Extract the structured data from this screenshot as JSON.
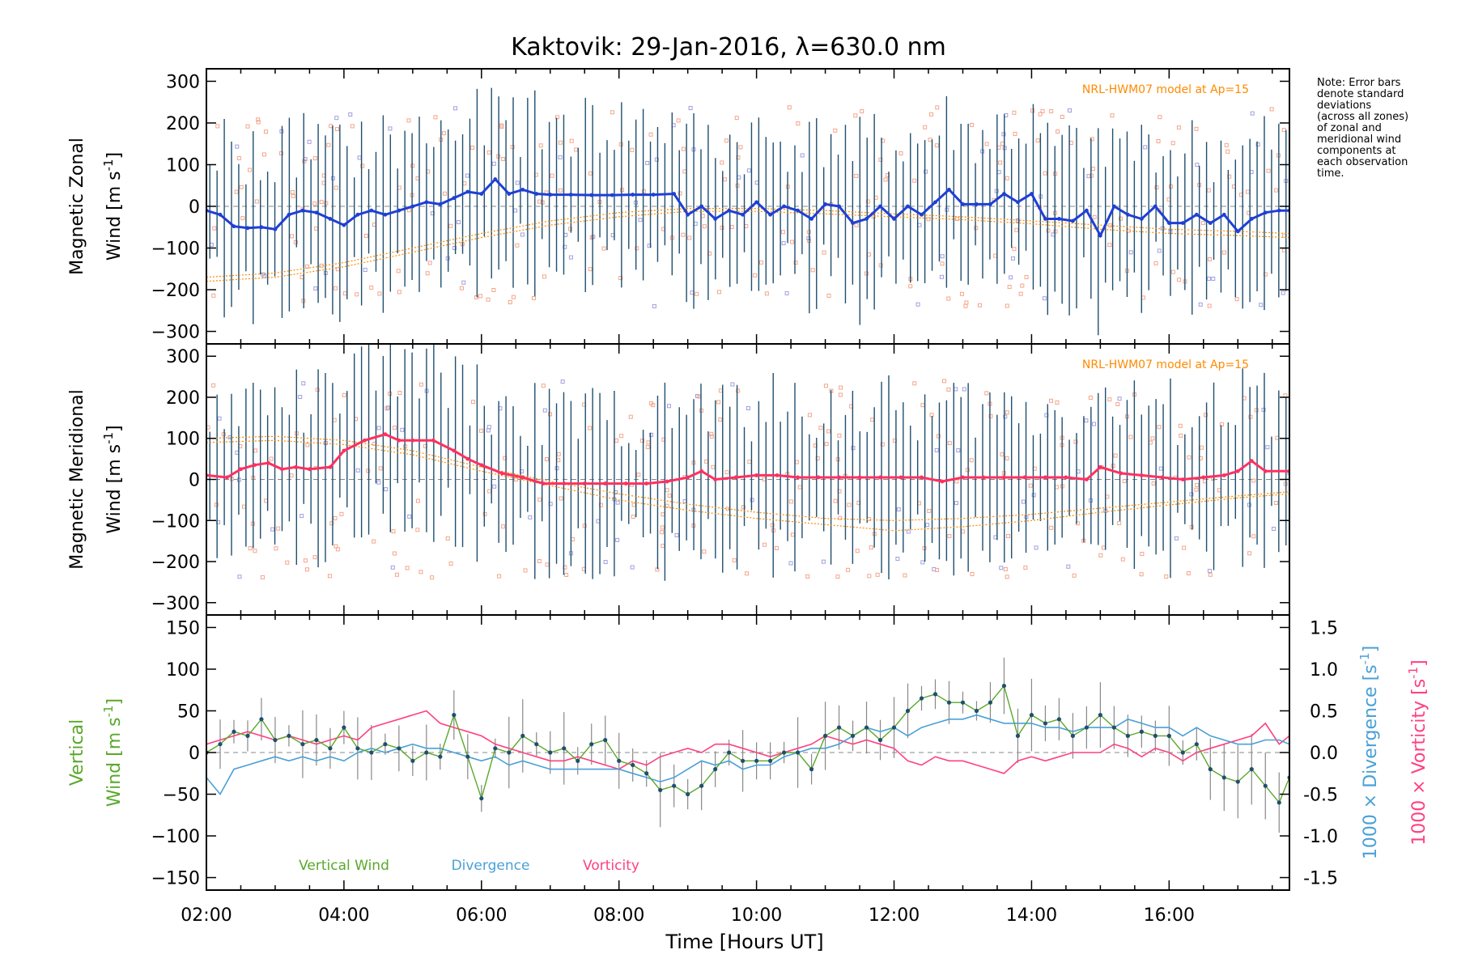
{
  "title": "Kaktovik: 29-Jan-2016, λ=630.0 nm",
  "xlabel": "Time [Hours UT]",
  "note_lines": [
    "Note: Error bars",
    "denote standard",
    "deviations",
    "(across all zones)",
    "of zonal and",
    "meridional wind",
    "components at",
    "each observation",
    "time."
  ],
  "colors": {
    "zonal": "#1f3fd6",
    "meridional": "#ff3060",
    "vertical": "#5aa82a",
    "divergence": "#4aa0d8",
    "vorticity": "#ff4080",
    "model": "#ff8a00",
    "errorbar": "#1f4f6f",
    "zone_a": "#f4a58a",
    "zone_b": "#9f9fe0"
  },
  "chart_data": [
    {
      "type": "line",
      "panel": "zonal",
      "ylabel_line1": "Magnetic Zonal",
      "ylabel_line2": "Wind [m s",
      "ylabel_sup": "-1",
      "ylabel_close": "]",
      "ylim": [
        -330,
        330
      ],
      "yticks": [
        300,
        200,
        100,
        0,
        -100,
        -200,
        -300
      ],
      "xlim": [
        2.0,
        17.75
      ],
      "model_label": "NRL-HWM07 model at Ap=15",
      "series": [
        {
          "x": [
            2.0,
            2.2,
            2.4,
            2.6,
            2.8,
            3.0,
            3.2,
            3.4,
            3.6,
            3.8,
            4.0,
            4.2,
            4.4,
            4.6,
            4.8,
            5.0,
            5.2,
            5.4,
            5.6,
            5.8,
            6.0,
            6.2,
            6.4,
            6.6,
            6.8,
            7.0,
            7.3,
            7.6,
            7.9,
            8.2,
            8.5,
            8.8,
            9.0,
            9.2,
            9.4,
            9.6,
            9.8,
            10.0,
            10.2,
            10.4,
            10.6,
            10.8,
            11.0,
            11.2,
            11.4,
            11.6,
            11.8,
            12.0,
            12.2,
            12.4,
            12.6,
            12.8,
            13.0,
            13.2,
            13.4,
            13.6,
            13.8,
            14.0,
            14.2,
            14.4,
            14.6,
            14.8,
            15.0,
            15.2,
            15.4,
            15.6,
            15.8,
            16.0,
            16.2,
            16.4,
            16.6,
            16.8,
            17.0,
            17.2,
            17.4,
            17.6,
            17.75
          ],
          "y": [
            -10,
            -20,
            -48,
            -52,
            -50,
            -55,
            -20,
            -10,
            -15,
            -30,
            -45,
            -20,
            -10,
            -20,
            -10,
            0,
            10,
            5,
            20,
            35,
            30,
            65,
            30,
            40,
            30,
            28,
            28,
            27,
            27,
            28,
            28,
            30,
            -20,
            0,
            -30,
            -10,
            -20,
            10,
            -20,
            0,
            -10,
            -30,
            5,
            0,
            -40,
            -30,
            0,
            -30,
            0,
            -20,
            10,
            40,
            5,
            5,
            5,
            30,
            10,
            30,
            -30,
            -30,
            -35,
            -10,
            -70,
            0,
            -20,
            -30,
            0,
            -40,
            -40,
            -20,
            -40,
            -20,
            -60,
            -30,
            -15,
            -10,
            -10
          ]
        }
      ],
      "model": [
        {
          "x": [
            2.0,
            3.0,
            4.0,
            5.0,
            6.0,
            7.0,
            8.0,
            9.0,
            10.0,
            11.0,
            12.0,
            13.0,
            14.0,
            15.0,
            16.0,
            17.0,
            17.75
          ],
          "y": [
            -170,
            -160,
            -135,
            -100,
            -65,
            -35,
            -15,
            -5,
            -5,
            -10,
            -18,
            -25,
            -35,
            -45,
            -55,
            -60,
            -65
          ]
        },
        {
          "x": [
            2.0,
            3.0,
            4.0,
            5.0,
            6.0,
            7.0,
            8.0,
            9.0,
            10.0,
            11.0,
            12.0,
            13.0,
            14.0,
            15.0,
            16.0,
            17.0,
            17.75
          ],
          "y": [
            -180,
            -170,
            -145,
            -110,
            -75,
            -45,
            -25,
            -12,
            -12,
            -18,
            -25,
            -32,
            -42,
            -55,
            -65,
            -70,
            -75
          ]
        }
      ]
    },
    {
      "type": "line",
      "panel": "meridional",
      "ylabel_line1": "Magnetic Meridional",
      "ylabel_line2": "Wind [m s",
      "ylabel_sup": "-1",
      "ylabel_close": "]",
      "ylim": [
        -330,
        330
      ],
      "yticks": [
        300,
        200,
        100,
        0,
        -100,
        -200,
        -300
      ],
      "xlim": [
        2.0,
        17.75
      ],
      "model_label": "NRL-HWM07 model at Ap=15",
      "series": [
        {
          "x": [
            2.0,
            2.3,
            2.5,
            2.7,
            2.9,
            3.1,
            3.3,
            3.5,
            3.8,
            4.0,
            4.3,
            4.6,
            4.8,
            5.0,
            5.3,
            5.6,
            5.8,
            6.0,
            6.3,
            6.6,
            6.9,
            7.2,
            7.5,
            7.8,
            8.1,
            8.4,
            8.7,
            9.0,
            9.2,
            9.4,
            9.7,
            10.0,
            10.3,
            10.6,
            10.9,
            11.2,
            11.5,
            11.8,
            12.1,
            12.4,
            12.7,
            13.0,
            13.3,
            13.6,
            13.9,
            14.2,
            14.5,
            14.8,
            15.0,
            15.3,
            15.6,
            15.9,
            16.2,
            16.5,
            16.8,
            17.0,
            17.2,
            17.4,
            17.75
          ],
          "y": [
            10,
            5,
            25,
            35,
            40,
            25,
            30,
            25,
            30,
            70,
            95,
            110,
            95,
            95,
            95,
            70,
            50,
            35,
            15,
            5,
            -10,
            -10,
            -10,
            -10,
            -10,
            -10,
            -5,
            5,
            20,
            0,
            5,
            10,
            10,
            5,
            5,
            5,
            5,
            5,
            5,
            5,
            -5,
            5,
            5,
            5,
            5,
            5,
            5,
            0,
            30,
            15,
            10,
            5,
            0,
            5,
            10,
            20,
            45,
            20,
            20
          ]
        }
      ],
      "model": [
        {
          "x": [
            2.0,
            3.0,
            4.0,
            5.0,
            6.0,
            7.0,
            8.0,
            9.0,
            10.0,
            11.0,
            12.0,
            13.0,
            14.0,
            15.0,
            16.0,
            17.0,
            17.75
          ],
          "y": [
            100,
            105,
            95,
            70,
            30,
            -5,
            -35,
            -60,
            -80,
            -95,
            -100,
            -95,
            -85,
            -70,
            -55,
            -40,
            -30
          ]
        },
        {
          "x": [
            2.0,
            3.0,
            4.0,
            5.0,
            6.0,
            7.0,
            8.0,
            9.0,
            10.0,
            11.0,
            12.0,
            13.0,
            14.0,
            15.0,
            16.0,
            17.0,
            17.75
          ],
          "y": [
            90,
            95,
            85,
            60,
            20,
            -15,
            -50,
            -75,
            -95,
            -110,
            -125,
            -115,
            -100,
            -80,
            -62,
            -45,
            -35
          ]
        }
      ]
    },
    {
      "type": "line",
      "panel": "vertical",
      "ylabel_line1": "Vertical",
      "ylabel_line2": "Wind [m s",
      "ylabel_sup": "-1",
      "ylabel_close": "]",
      "ylim": [
        -165,
        165
      ],
      "yticks": [
        150,
        100,
        50,
        0,
        -50,
        -100,
        -150
      ],
      "y2lim": [
        -1.65,
        1.65
      ],
      "y2ticks": [
        1.5,
        1.0,
        0.5,
        0.0,
        -0.5,
        -1.0,
        -1.5
      ],
      "y2label_divergence": "1000 × Divergence [s",
      "y2label_vorticity": "1000 × Vorticity [s",
      "y2label_sup": "-1",
      "y2label_close": "]",
      "xlim": [
        2.0,
        17.75
      ],
      "xticks": [
        "02:00",
        "04:00",
        "06:00",
        "08:00",
        "10:00",
        "12:00",
        "14:00",
        "16:00"
      ],
      "legend": [
        "Vertical Wind",
        "Divergence",
        "Vorticity"
      ],
      "series": [
        {
          "name": "Vertical Wind",
          "x": [
            2.0,
            2.2,
            2.4,
            2.6,
            2.8,
            3.0,
            3.2,
            3.4,
            3.6,
            3.8,
            4.0,
            4.2,
            4.4,
            4.6,
            4.8,
            5.0,
            5.2,
            5.4,
            5.6,
            5.8,
            6.0,
            6.2,
            6.4,
            6.6,
            6.8,
            7.0,
            7.2,
            7.4,
            7.6,
            7.8,
            8.0,
            8.2,
            8.4,
            8.6,
            8.8,
            9.0,
            9.2,
            9.4,
            9.6,
            9.8,
            10.0,
            10.2,
            10.4,
            10.6,
            10.8,
            11.0,
            11.2,
            11.4,
            11.6,
            11.8,
            12.0,
            12.2,
            12.4,
            12.6,
            12.8,
            13.0,
            13.2,
            13.4,
            13.6,
            13.8,
            14.0,
            14.2,
            14.4,
            14.6,
            14.8,
            15.0,
            15.2,
            15.4,
            15.6,
            15.8,
            16.0,
            16.2,
            16.4,
            16.6,
            16.8,
            17.0,
            17.2,
            17.4,
            17.6,
            17.75
          ],
          "y": [
            0,
            10,
            25,
            20,
            40,
            15,
            20,
            10,
            15,
            5,
            30,
            5,
            0,
            10,
            5,
            -10,
            0,
            -5,
            45,
            -5,
            -55,
            5,
            0,
            20,
            10,
            0,
            5,
            -10,
            10,
            15,
            -10,
            -15,
            -25,
            -45,
            -40,
            -50,
            -40,
            -20,
            0,
            -10,
            -10,
            -10,
            0,
            0,
            -20,
            20,
            30,
            20,
            30,
            15,
            30,
            50,
            65,
            70,
            60,
            60,
            50,
            60,
            80,
            20,
            45,
            35,
            40,
            20,
            30,
            45,
            30,
            20,
            25,
            20,
            20,
            0,
            10,
            -20,
            -30,
            -35,
            -20,
            -40,
            -60,
            -30
          ]
        },
        {
          "name": "Divergence",
          "x": [
            2.0,
            2.2,
            2.4,
            2.6,
            2.8,
            3.0,
            3.2,
            3.4,
            3.6,
            3.8,
            4.0,
            4.2,
            4.4,
            4.6,
            4.8,
            5.0,
            5.2,
            5.4,
            5.6,
            5.8,
            6.0,
            6.2,
            6.4,
            6.6,
            6.8,
            7.0,
            7.2,
            7.4,
            7.6,
            7.8,
            8.0,
            8.2,
            8.4,
            8.6,
            8.8,
            9.0,
            9.2,
            9.4,
            9.6,
            9.8,
            10.0,
            10.2,
            10.4,
            10.6,
            10.8,
            11.0,
            11.2,
            11.4,
            11.6,
            11.8,
            12.0,
            12.2,
            12.4,
            12.6,
            12.8,
            13.0,
            13.2,
            13.4,
            13.6,
            13.8,
            14.0,
            14.2,
            14.4,
            14.6,
            14.8,
            15.0,
            15.2,
            15.4,
            15.6,
            15.8,
            16.0,
            16.2,
            16.4,
            16.6,
            16.8,
            17.0,
            17.2,
            17.4,
            17.6,
            17.75
          ],
          "y": [
            -0.3,
            -0.5,
            -0.2,
            -0.15,
            -0.1,
            -0.05,
            -0.1,
            -0.05,
            -0.1,
            -0.05,
            -0.1,
            0.0,
            0.05,
            0.0,
            0.05,
            0.1,
            0.05,
            0.05,
            0.0,
            -0.05,
            -0.1,
            -0.05,
            -0.15,
            -0.1,
            -0.15,
            -0.2,
            -0.2,
            -0.2,
            -0.2,
            -0.2,
            -0.2,
            -0.25,
            -0.3,
            -0.35,
            -0.3,
            -0.2,
            -0.1,
            -0.15,
            -0.1,
            -0.2,
            -0.15,
            -0.15,
            -0.05,
            0.0,
            0.05,
            0.05,
            0.1,
            0.2,
            0.3,
            0.25,
            0.3,
            0.2,
            0.3,
            0.35,
            0.4,
            0.4,
            0.45,
            0.4,
            0.35,
            0.35,
            0.35,
            0.3,
            0.3,
            0.25,
            0.3,
            0.3,
            0.3,
            0.4,
            0.35,
            0.3,
            0.3,
            0.2,
            0.3,
            0.2,
            0.15,
            0.1,
            0.1,
            0.15,
            0.15,
            0.1
          ]
        },
        {
          "name": "Vorticity",
          "x": [
            2.0,
            2.2,
            2.4,
            2.6,
            2.8,
            3.0,
            3.2,
            3.4,
            3.6,
            3.8,
            4.0,
            4.2,
            4.4,
            4.6,
            4.8,
            5.0,
            5.2,
            5.4,
            5.6,
            5.8,
            6.0,
            6.2,
            6.4,
            6.6,
            6.8,
            7.0,
            7.2,
            7.4,
            7.6,
            7.8,
            8.0,
            8.2,
            8.4,
            8.6,
            8.8,
            9.0,
            9.2,
            9.4,
            9.6,
            9.8,
            10.0,
            10.2,
            10.4,
            10.6,
            10.8,
            11.0,
            11.2,
            11.4,
            11.6,
            11.8,
            12.0,
            12.2,
            12.4,
            12.6,
            12.8,
            13.0,
            13.2,
            13.4,
            13.6,
            13.8,
            14.0,
            14.2,
            14.4,
            14.6,
            14.8,
            15.0,
            15.2,
            15.4,
            15.6,
            15.8,
            16.0,
            16.2,
            16.4,
            16.6,
            16.8,
            17.0,
            17.2,
            17.4,
            17.6,
            17.75
          ],
          "y": [
            0.1,
            0.15,
            0.2,
            0.25,
            0.2,
            0.15,
            0.2,
            0.15,
            0.1,
            0.15,
            0.2,
            0.15,
            0.3,
            0.35,
            0.4,
            0.45,
            0.5,
            0.35,
            0.3,
            0.25,
            0.2,
            0.1,
            0.05,
            0.0,
            -0.05,
            -0.1,
            -0.1,
            -0.05,
            -0.1,
            -0.15,
            -0.2,
            -0.1,
            -0.15,
            -0.05,
            0.0,
            0.05,
            0.0,
            0.1,
            0.1,
            0.05,
            0.0,
            -0.05,
            0.0,
            0.05,
            0.1,
            0.2,
            0.15,
            0.1,
            0.15,
            0.1,
            0.05,
            -0.1,
            -0.15,
            -0.05,
            -0.1,
            -0.1,
            -0.15,
            -0.2,
            -0.25,
            -0.1,
            -0.05,
            -0.1,
            -0.05,
            0.0,
            0.0,
            0.0,
            0.1,
            0.05,
            -0.05,
            0.05,
            0.0,
            -0.1,
            0.0,
            0.05,
            0.1,
            0.15,
            0.2,
            0.35,
            0.1,
            0.2
          ]
        }
      ]
    }
  ]
}
